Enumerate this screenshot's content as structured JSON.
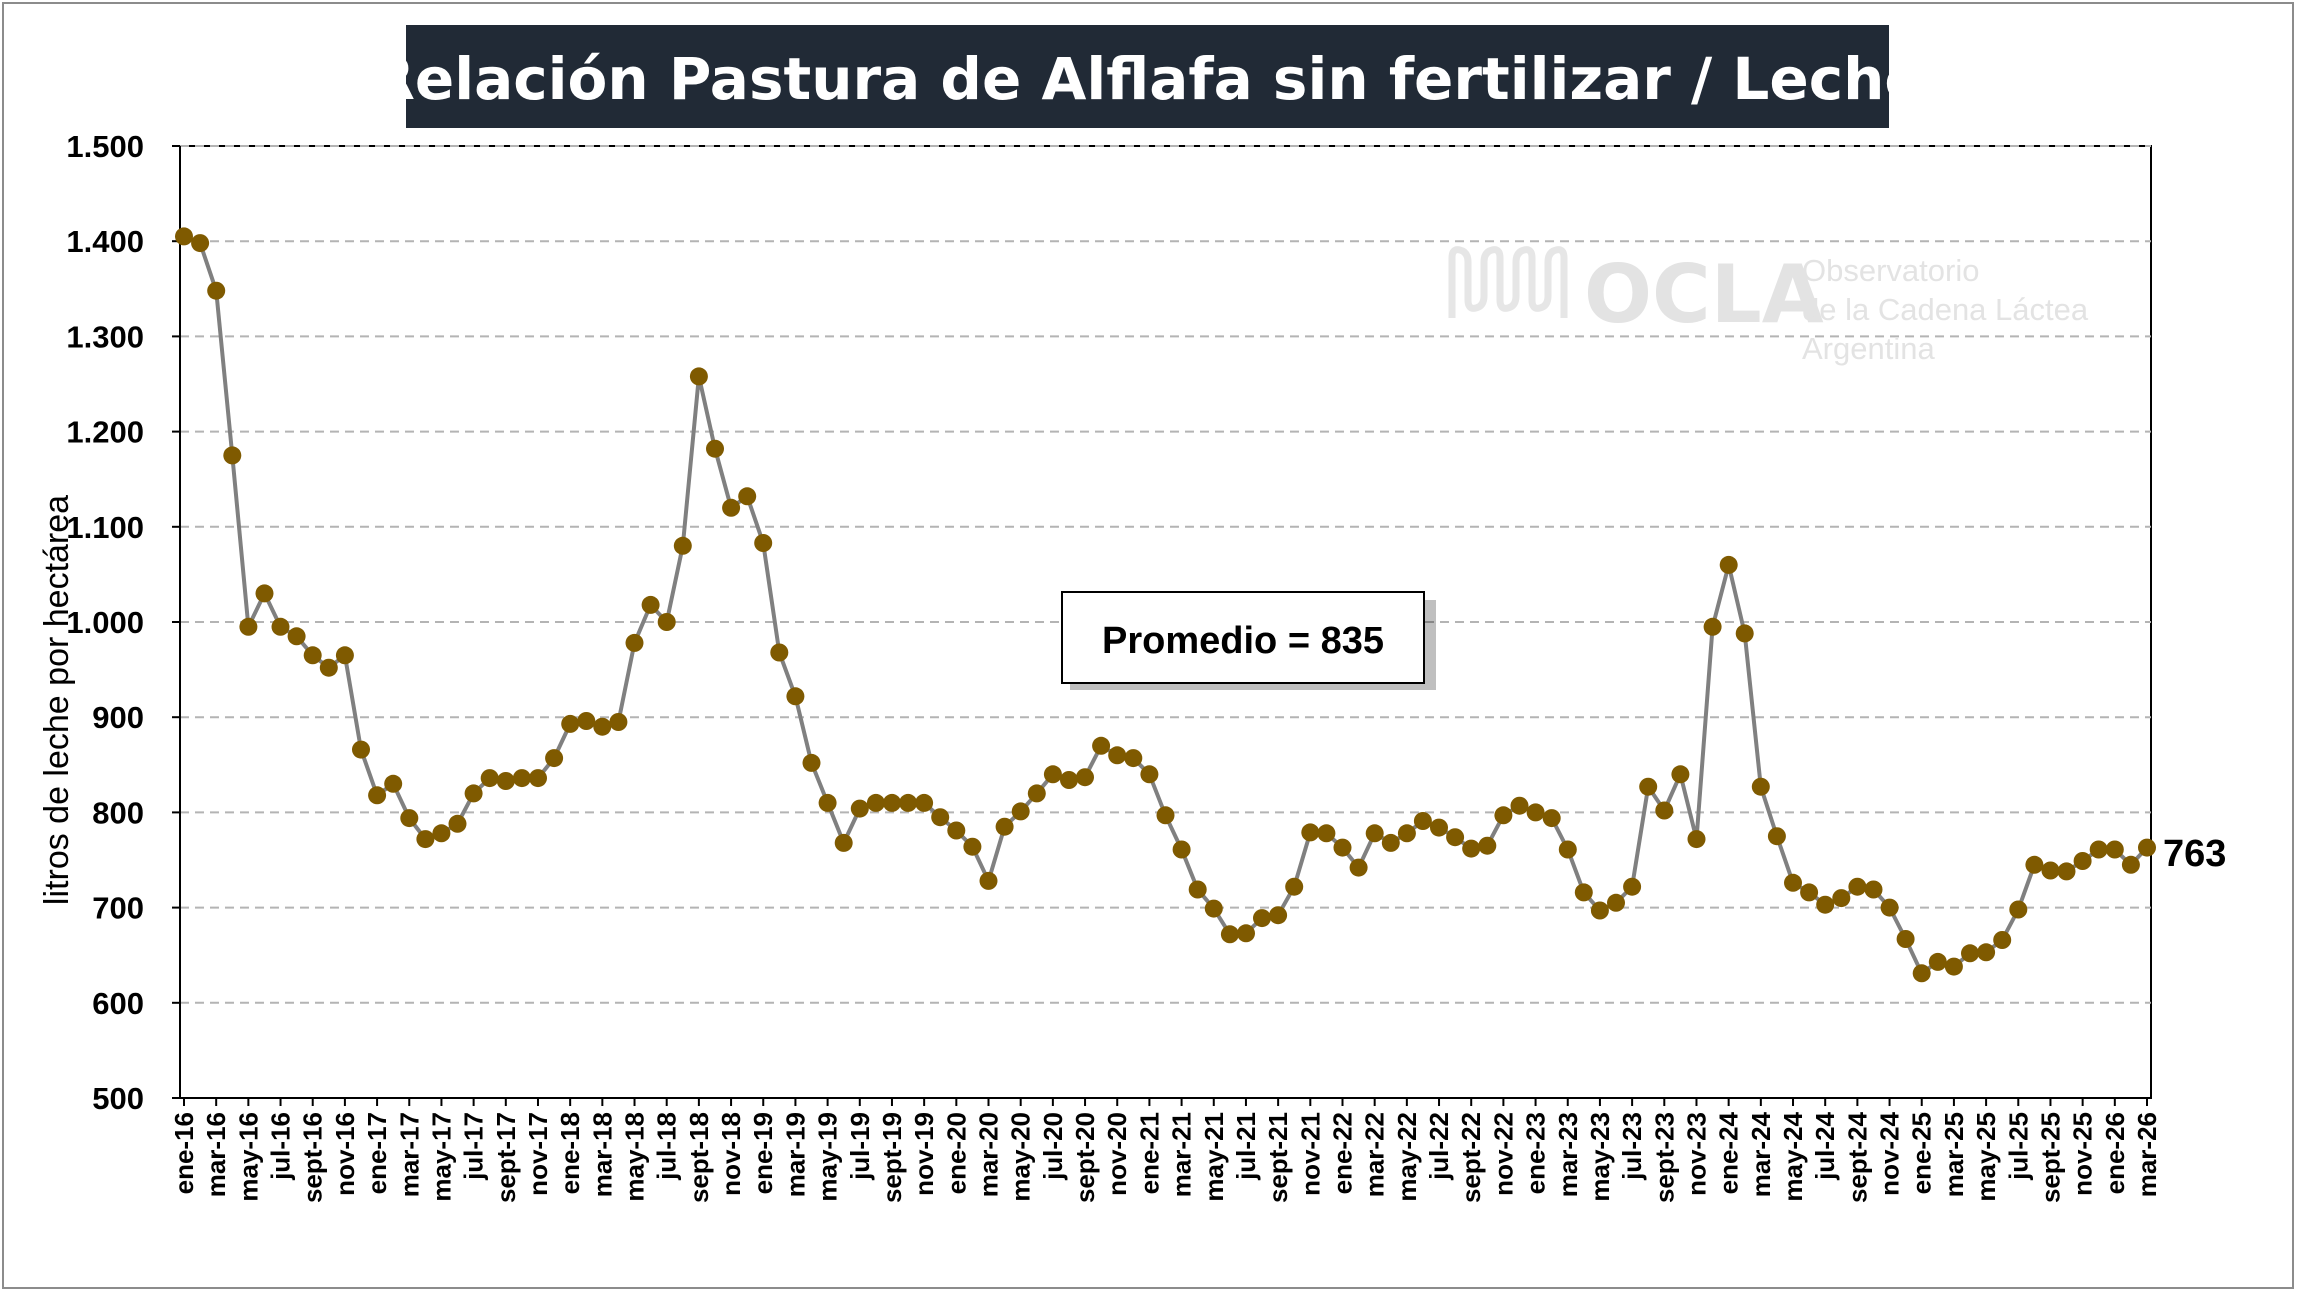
{
  "chart_data": {
    "type": "line",
    "title": "Relación Pastura de Alflafa sin fertilizar / Leche",
    "xlabel": "",
    "ylabel": "litros de leche por hectárea",
    "ylim": [
      500,
      1500
    ],
    "yticks": [
      "500",
      "600",
      "700",
      "800",
      "900",
      "1.000",
      "1.100",
      "1.200",
      "1.300",
      "1.400",
      "1.500"
    ],
    "grid": "horizontal dashed",
    "line_color": "#808080",
    "marker_color": "#7f5a00",
    "x_tick_labels": [
      "ene-16",
      "mar-16",
      "may-16",
      "jul-16",
      "sept-16",
      "nov-16",
      "ene-17",
      "mar-17",
      "may-17",
      "jul-17",
      "sept-17",
      "nov-17",
      "ene-18",
      "mar-18",
      "may-18",
      "jul-18",
      "sept-18",
      "nov-18",
      "ene-19",
      "mar-19",
      "may-19",
      "jul-19",
      "sept-19",
      "nov-19",
      "ene-20",
      "mar-20",
      "may-20",
      "jul-20",
      "sept-20",
      "nov-20",
      "ene-21",
      "mar-21",
      "may-21",
      "jul-21",
      "sept-21",
      "nov-21",
      "ene-22",
      "mar-22",
      "may-22",
      "jul-22",
      "sept-22",
      "nov-22",
      "ene-23",
      "mar-23",
      "may-23",
      "jul-23",
      "sept-23",
      "nov-23",
      "ene-24",
      "mar-24",
      "may-24",
      "jul-24",
      "sept-24",
      "nov-24",
      "ene-25",
      "mar-25",
      "may-25",
      "jul-25",
      "sept-25",
      "nov-25",
      "ene-26",
      "mar-26"
    ],
    "series": [
      {
        "values": [
          1405,
          1398,
          1348,
          1175,
          995,
          1030,
          995,
          985,
          965,
          952,
          965,
          866,
          818,
          830,
          794,
          772,
          778,
          788,
          820,
          836,
          833,
          836,
          836,
          857,
          893,
          896,
          890,
          895,
          978,
          1018,
          1000,
          1080,
          1258,
          1182,
          1120,
          1132,
          1083,
          968,
          922,
          852,
          810,
          768,
          804,
          810,
          810,
          810,
          810,
          795,
          781,
          764,
          728,
          785,
          801,
          820,
          840,
          834,
          837,
          870,
          860,
          857,
          840,
          797,
          761,
          719,
          699,
          672,
          673,
          689,
          692,
          722,
          779,
          778,
          763,
          742,
          778,
          768,
          778,
          791,
          784,
          774,
          762,
          765,
          797,
          807,
          800,
          794,
          761,
          716,
          697,
          705,
          722,
          827,
          802,
          840,
          772,
          995,
          1060,
          988,
          827,
          775,
          726,
          716,
          703,
          710,
          722,
          719,
          700,
          667,
          631,
          643,
          638,
          652,
          653,
          666,
          698,
          745,
          739,
          738,
          749,
          761,
          761,
          745,
          763
        ]
      }
    ],
    "annotation_average": "Promedio = 835",
    "last_value_label": "763"
  },
  "watermark": {
    "logo": "OCLA",
    "line1": "Observatorio",
    "line2": "de la Cadena Láctea",
    "line3": "Argentina"
  }
}
